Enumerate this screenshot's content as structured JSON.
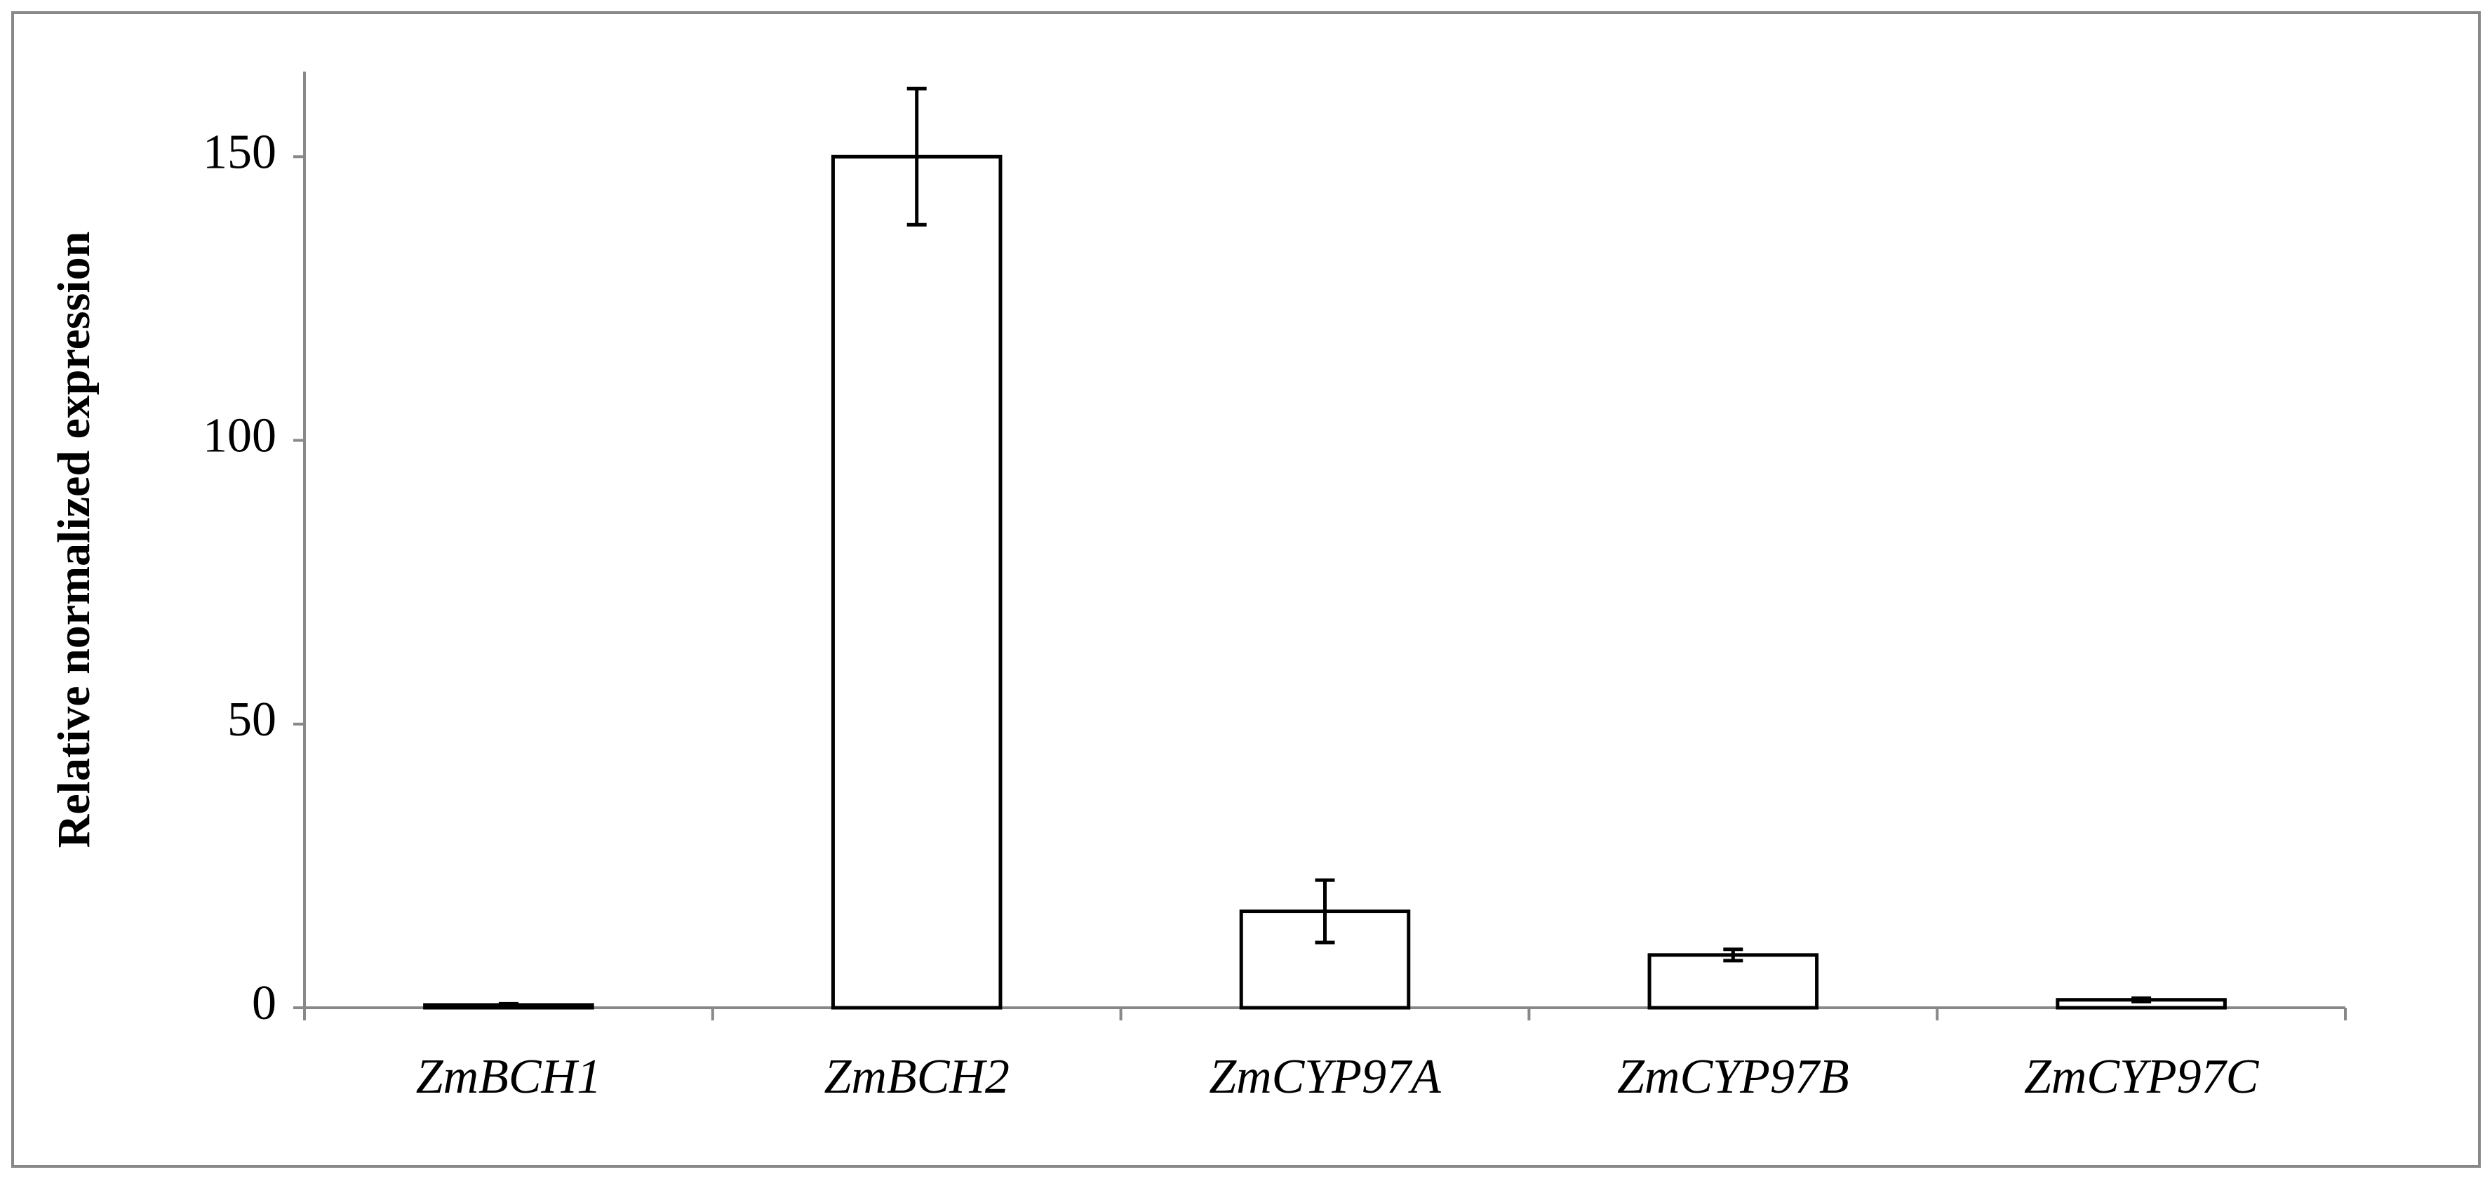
{
  "chart_data": {
    "type": "bar",
    "y_label": "Relative normalized expression",
    "categories": [
      "ZmBCH1",
      "ZmBCH2",
      "ZmCYP97A",
      "ZmCYP97B",
      "ZmCYP97C"
    ],
    "series": [
      {
        "color": "#ffffff",
        "values": [
          0.5,
          150,
          17,
          9.3,
          1.4
        ],
        "errors": [
          0.2,
          12,
          5.5,
          1,
          0.3
        ]
      }
    ],
    "ylim": [
      0,
      165
    ],
    "yticks": [
      0,
      50,
      100,
      150
    ]
  }
}
